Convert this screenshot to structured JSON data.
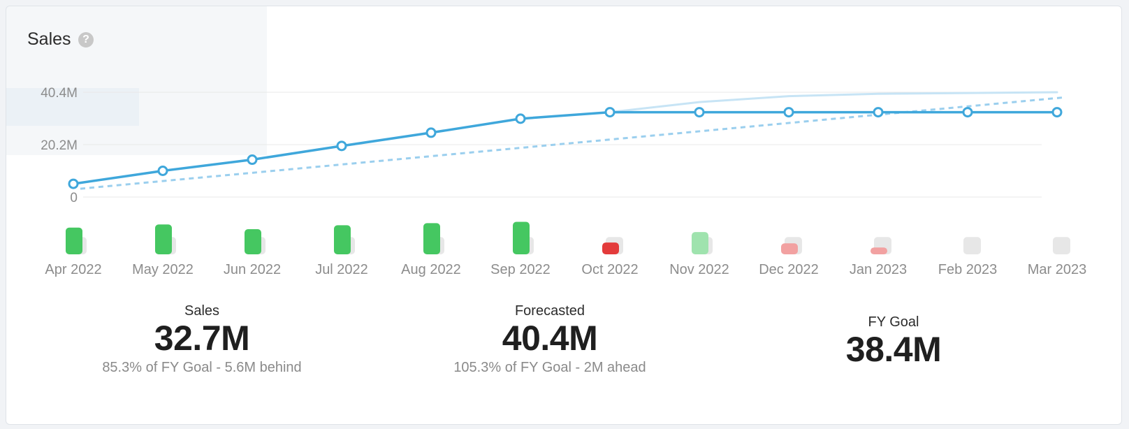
{
  "header": {
    "title": "Sales",
    "help_icon": "question-circle-icon"
  },
  "stats": {
    "sales": {
      "label": "Sales",
      "value": "32.7M",
      "sub": "85.3% of FY Goal - 5.6M behind"
    },
    "forecast": {
      "label": "Forecasted",
      "value": "40.4M",
      "sub": "105.3% of FY Goal - 2M ahead"
    },
    "goal": {
      "label": "FY Goal",
      "value": "38.4M"
    }
  },
  "colors": {
    "actual": "#3fa7db",
    "goal": "#9bcfee",
    "forecast": "#c7e4f5",
    "bar_good": "#45c761",
    "bar_good_light": "#9fe3ae",
    "bar_bad": "#e33b3b",
    "bar_bad_light": "#f2a1a1",
    "bar_target": "#e7e7e7",
    "grid": "#e8e8e8",
    "tick_text": "#8c8c8c"
  },
  "chart_data": {
    "type": "line",
    "categories": [
      "Apr 2022",
      "May 2022",
      "Jun 2022",
      "Jul 2022",
      "Aug 2022",
      "Sep 2022",
      "Oct 2022",
      "Nov 2022",
      "Dec 2022",
      "Jan 2023",
      "Feb 2023",
      "Mar 2023"
    ],
    "y_ticks": [
      {
        "value": 0,
        "label": "0"
      },
      {
        "value": 20.2,
        "label": "20.2M"
      },
      {
        "value": 40.4,
        "label": "40.4M"
      }
    ],
    "ylim": [
      0,
      40.4
    ],
    "grid": true,
    "series": [
      {
        "key": "actual",
        "style": "solid-markers",
        "values": [
          5.1,
          10.1,
          14.4,
          19.7,
          24.8,
          30.2,
          32.7,
          32.7,
          32.7,
          32.7,
          32.7,
          32.7
        ]
      },
      {
        "key": "goal",
        "style": "dashed",
        "values": [
          3.2,
          6.4,
          9.6,
          12.8,
          16.0,
          19.2,
          22.4,
          25.6,
          28.8,
          32.0,
          35.2,
          38.4
        ]
      },
      {
        "key": "forecast",
        "style": "faint",
        "values": [
          null,
          null,
          null,
          null,
          null,
          null,
          32.7,
          36.6,
          38.9,
          39.8,
          40.1,
          40.4
        ]
      }
    ],
    "monthly_bars": {
      "actual": [
        10.2,
        11.4,
        9.6,
        11.1,
        11.9,
        12.4,
        4.5,
        8.5,
        4.2,
        2.6,
        0,
        0
      ],
      "kind": [
        "good",
        "good",
        "good",
        "good",
        "good",
        "good",
        "bad",
        "good_light",
        "bad_light",
        "bad_light",
        "none",
        "none"
      ],
      "target": [
        6.6,
        6.6,
        6.6,
        6.6,
        6.6,
        6.6,
        6.6,
        6.6,
        6.6,
        6.6,
        6.6,
        6.6
      ]
    }
  }
}
